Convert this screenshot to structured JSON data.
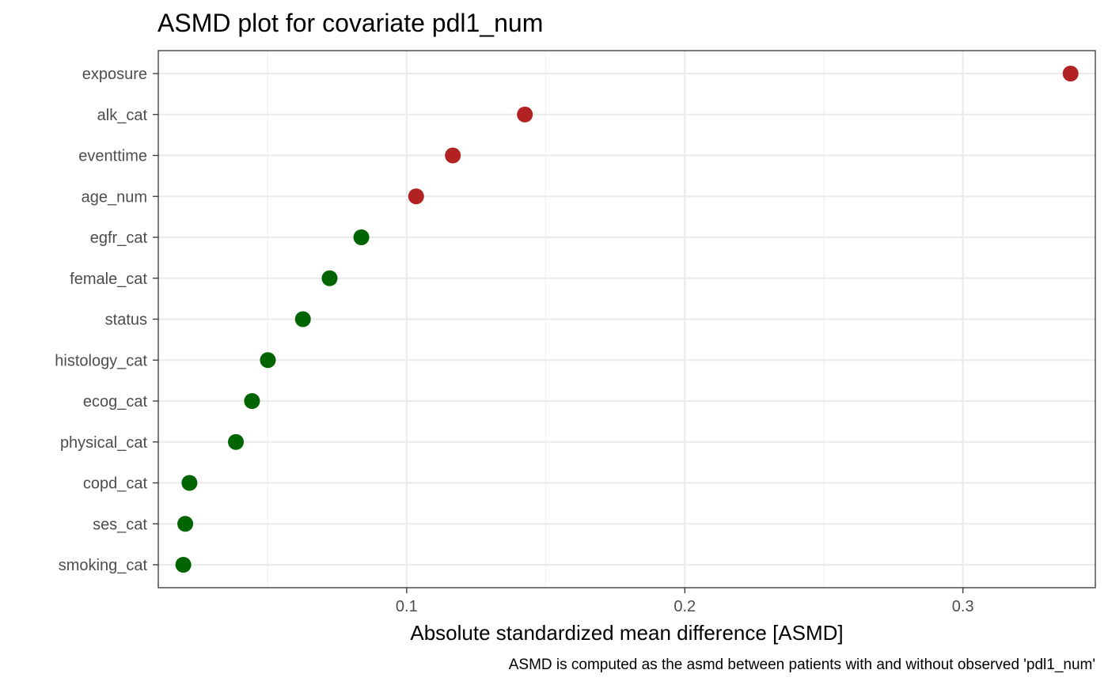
{
  "chart_data": {
    "type": "scatter",
    "title": "ASMD plot for covariate pdl1_num",
    "xlabel": "Absolute standardized mean difference [ASMD]",
    "ylabel": "",
    "caption": "ASMD is computed as the asmd between patients with and without observed 'pdl1_num'",
    "xlim": [
      0.0107,
      0.3476
    ],
    "xticks": [
      0.1,
      0.2,
      0.3
    ],
    "xtick_labels": [
      "0.1",
      "0.2",
      "0.3"
    ],
    "grid": true,
    "legend": "none",
    "colors": {
      "above_threshold": "#b22222",
      "below_threshold": "#006400"
    },
    "points": [
      {
        "label": "exposure",
        "x": 0.3387,
        "group": "above_threshold"
      },
      {
        "label": "alk_cat",
        "x": 0.1425,
        "group": "above_threshold"
      },
      {
        "label": "eventtime",
        "x": 0.1166,
        "group": "above_threshold"
      },
      {
        "label": "age_num",
        "x": 0.1034,
        "group": "above_threshold"
      },
      {
        "label": "egfr_cat",
        "x": 0.0837,
        "group": "below_threshold"
      },
      {
        "label": "female_cat",
        "x": 0.0723,
        "group": "below_threshold"
      },
      {
        "label": "status",
        "x": 0.0627,
        "group": "below_threshold"
      },
      {
        "label": "histology_cat",
        "x": 0.0501,
        "group": "below_threshold"
      },
      {
        "label": "ecog_cat",
        "x": 0.0444,
        "group": "below_threshold"
      },
      {
        "label": "physical_cat",
        "x": 0.0386,
        "group": "below_threshold"
      },
      {
        "label": "copd_cat",
        "x": 0.0219,
        "group": "below_threshold"
      },
      {
        "label": "ses_cat",
        "x": 0.0204,
        "group": "below_threshold"
      },
      {
        "label": "smoking_cat",
        "x": 0.0197,
        "group": "below_threshold"
      }
    ]
  }
}
